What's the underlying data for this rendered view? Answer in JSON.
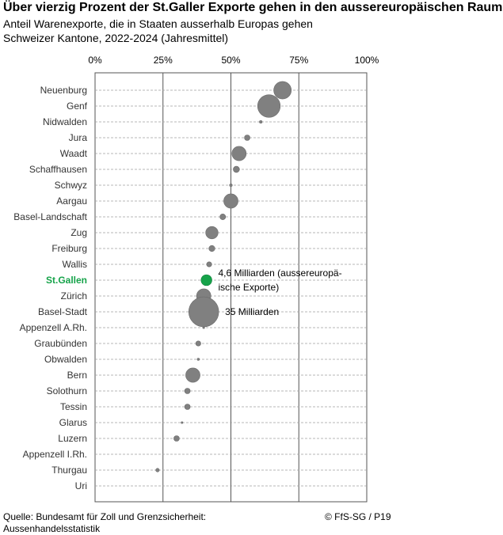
{
  "title": "Über vierzig Prozent der St.Galler Exporte gehen in den aussereuropäischen Raum",
  "subtitle_1": "Anteil Warenexporte, die in Staaten ausserhalb Europas gehen",
  "subtitle_2": "Schweizer Kantone, 2022-2024 (Jahresmittel)",
  "source_1": "Quelle: Bundesamt für Zoll und Grenzsicherheit:",
  "source_2": "Aussenhandelsstatistik",
  "credit": "© FfS-SG / P19",
  "colors": {
    "point": "#808080",
    "highlight": "#16a34a",
    "grid": "#a0a0a0"
  },
  "chart_data": {
    "type": "scatter",
    "x_ticks": [
      "0%",
      "25%",
      "50%",
      "75%",
      "100%"
    ],
    "xlim": [
      0,
      100
    ],
    "x_unit": "%",
    "grid": true,
    "size_meaning": "Warenexporte ausserhalb Europas (Mrd. CHF)",
    "highlight": "St.Gallen",
    "categories": [
      "Neuenburg",
      "Genf",
      "Nidwalden",
      "Jura",
      "Waadt",
      "Schaffhausen",
      "Schwyz",
      "Aargau",
      "Basel-Landschaft",
      "Zug",
      "Freiburg",
      "Wallis",
      "St.Gallen",
      "Zürich",
      "Basel-Stadt",
      "Appenzell A.Rh.",
      "Graubünden",
      "Obwalden",
      "Bern",
      "Solothurn",
      "Tessin",
      "Glarus",
      "Luzern",
      "Appenzell I.Rh.",
      "Thurgau",
      "Uri"
    ],
    "values": [
      69,
      64,
      61,
      56,
      53,
      52,
      50,
      50,
      47,
      43,
      43,
      42,
      41,
      40,
      40,
      40,
      38,
      38,
      36,
      34,
      34,
      32,
      30,
      0,
      23,
      0
    ],
    "bubble_billions": [
      12,
      20,
      0.3,
      1.2,
      8,
      1.5,
      0.3,
      8,
      1.3,
      6,
      1.4,
      1,
      4.6,
      8,
      35,
      0.1,
      1,
      0.2,
      8,
      1.2,
      1.2,
      0.1,
      1.2,
      0,
      0.5,
      0
    ],
    "annotations": [
      {
        "category": "St.Gallen",
        "lines": [
          "4,6 Milliarden (aussereuropä-",
          "ische Exporte)"
        ]
      },
      {
        "category": "Basel-Stadt",
        "lines": [
          "35 Milliarden"
        ]
      }
    ]
  }
}
